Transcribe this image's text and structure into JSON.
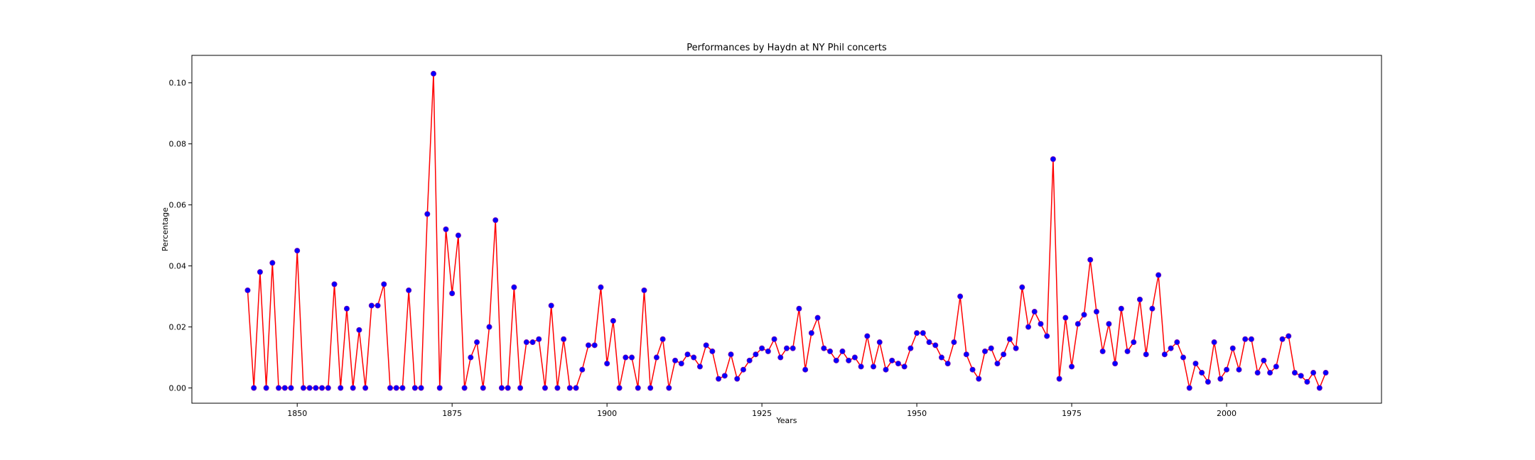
{
  "chart_data": {
    "type": "line",
    "title": "Performances by Haydn at NY Phil concerts",
    "xlabel": "Years",
    "ylabel": "Percentage",
    "xlim": [
      1833,
      2025
    ],
    "ylim": [
      -0.005,
      0.109
    ],
    "xticks": [
      1850,
      1875,
      1900,
      1925,
      1950,
      1975,
      2000
    ],
    "xtick_labels": [
      "1850",
      "1875",
      "1900",
      "1925",
      "1950",
      "1975",
      "2000"
    ],
    "yticks": [
      0.0,
      0.02,
      0.04,
      0.06,
      0.08,
      0.1
    ],
    "ytick_labels": [
      "0.00",
      "0.02",
      "0.04",
      "0.06",
      "0.08",
      "0.10"
    ],
    "grid": false,
    "colors": {
      "line": "#ff0000",
      "marker": "#0000ff"
    },
    "series": [
      {
        "x": [
          1842,
          1843,
          1844,
          1845,
          1846,
          1847,
          1848,
          1849,
          1850,
          1851,
          1852,
          1853,
          1854,
          1855,
          1856,
          1857,
          1858,
          1859,
          1860,
          1861,
          1862,
          1863,
          1864,
          1865,
          1866,
          1867,
          1868,
          1869,
          1870,
          1871,
          1872,
          1873,
          1874,
          1875,
          1876,
          1877,
          1878,
          1879,
          1880,
          1881,
          1882,
          1883,
          1884,
          1885,
          1886,
          1887,
          1888,
          1889,
          1890,
          1891,
          1892,
          1893,
          1894,
          1895,
          1896,
          1897,
          1898,
          1899,
          1900,
          1901,
          1902,
          1903,
          1904,
          1905,
          1906,
          1907,
          1908,
          1909,
          1910,
          1911,
          1912,
          1913,
          1914,
          1915,
          1916,
          1917,
          1918,
          1919,
          1920,
          1921,
          1922,
          1923,
          1924,
          1925,
          1926,
          1927,
          1928,
          1929,
          1930,
          1931,
          1932,
          1933,
          1934,
          1935,
          1936,
          1937,
          1938,
          1939,
          1940,
          1941,
          1942,
          1943,
          1944,
          1945,
          1946,
          1947,
          1948,
          1949,
          1950,
          1951,
          1952,
          1953,
          1954,
          1955,
          1956,
          1957,
          1958,
          1959,
          1960,
          1961,
          1962,
          1963,
          1964,
          1965,
          1966,
          1967,
          1968,
          1969,
          1970,
          1971,
          1972,
          1973,
          1974,
          1975,
          1976,
          1977,
          1978,
          1979,
          1980,
          1981,
          1982,
          1983,
          1984,
          1985,
          1986,
          1987,
          1988,
          1989,
          1990,
          1991,
          1992,
          1993,
          1994,
          1995,
          1996,
          1997,
          1998,
          1999,
          2000,
          2001,
          2002,
          2003,
          2004,
          2005,
          2006,
          2007,
          2008,
          2009,
          2010,
          2011,
          2012,
          2013,
          2014,
          2015,
          2016
        ],
        "values": [
          0.032,
          0.0,
          0.038,
          0.0,
          0.041,
          0.0,
          0.0,
          0.0,
          0.045,
          0.0,
          0.0,
          0.0,
          0.0,
          0.0,
          0.034,
          0.0,
          0.026,
          0.0,
          0.019,
          0.0,
          0.027,
          0.027,
          0.034,
          0.0,
          0.0,
          0.0,
          0.032,
          0.0,
          0.0,
          0.057,
          0.103,
          0.0,
          0.052,
          0.031,
          0.05,
          0.0,
          0.01,
          0.015,
          0.0,
          0.02,
          0.055,
          0.0,
          0.0,
          0.033,
          0.0,
          0.015,
          0.015,
          0.016,
          0.0,
          0.027,
          0.0,
          0.016,
          0.0,
          0.0,
          0.006,
          0.014,
          0.014,
          0.033,
          0.008,
          0.022,
          0.0,
          0.01,
          0.01,
          0.0,
          0.032,
          0.0,
          0.01,
          0.016,
          0.0,
          0.009,
          0.008,
          0.011,
          0.01,
          0.007,
          0.014,
          0.012,
          0.003,
          0.004,
          0.011,
          0.003,
          0.006,
          0.009,
          0.011,
          0.013,
          0.012,
          0.016,
          0.01,
          0.013,
          0.013,
          0.026,
          0.006,
          0.018,
          0.023,
          0.013,
          0.012,
          0.009,
          0.012,
          0.009,
          0.01,
          0.007,
          0.017,
          0.007,
          0.015,
          0.006,
          0.009,
          0.008,
          0.007,
          0.013,
          0.018,
          0.018,
          0.015,
          0.014,
          0.01,
          0.008,
          0.015,
          0.03,
          0.011,
          0.006,
          0.003,
          0.012,
          0.013,
          0.008,
          0.011,
          0.016,
          0.013,
          0.033,
          0.02,
          0.025,
          0.021,
          0.017,
          0.075,
          0.003,
          0.023,
          0.007,
          0.021,
          0.024,
          0.042,
          0.025,
          0.012,
          0.021,
          0.008,
          0.026,
          0.012,
          0.015,
          0.029,
          0.011,
          0.026,
          0.037,
          0.011,
          0.013,
          0.015,
          0.01,
          0.0,
          0.008,
          0.005,
          0.002,
          0.015,
          0.003,
          0.006,
          0.013,
          0.006,
          0.016,
          0.016,
          0.005,
          0.009,
          0.005,
          0.007,
          0.016,
          0.017,
          0.005,
          0.004,
          0.002,
          0.005,
          0.0,
          0.005
        ]
      }
    ]
  }
}
